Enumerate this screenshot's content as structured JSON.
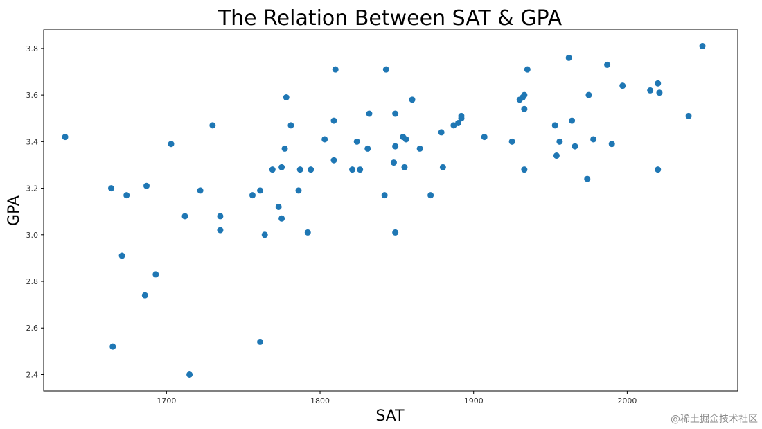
{
  "chart_data": {
    "type": "scatter",
    "title": "The Relation Between SAT & GPA",
    "xlabel": "SAT",
    "ylabel": "GPA",
    "xlim": [
      1620,
      2072
    ],
    "ylim": [
      2.33,
      3.88
    ],
    "xticks": [
      1700,
      1800,
      1900,
      2000
    ],
    "yticks": [
      2.4,
      2.6,
      2.8,
      3.0,
      3.2,
      3.4,
      3.6,
      3.8
    ],
    "xtick_labels": [
      "1700",
      "1800",
      "1900",
      "2000"
    ],
    "ytick_labels": [
      "2.4",
      "2.6",
      "2.8",
      "3.0",
      "3.2",
      "3.4",
      "3.6",
      "3.8"
    ],
    "grid": false,
    "marker_color": "#1f77b4",
    "points": [
      [
        1634,
        3.42
      ],
      [
        1664,
        3.2
      ],
      [
        1665,
        2.52
      ],
      [
        1671,
        2.91
      ],
      [
        1674,
        3.17
      ],
      [
        1686,
        2.74
      ],
      [
        1687,
        3.21
      ],
      [
        1693,
        2.83
      ],
      [
        1703,
        3.39
      ],
      [
        1712,
        3.08
      ],
      [
        1715,
        2.4
      ],
      [
        1722,
        3.19
      ],
      [
        1730,
        3.47
      ],
      [
        1735,
        3.08
      ],
      [
        1735,
        3.02
      ],
      [
        1756,
        3.17
      ],
      [
        1761,
        3.19
      ],
      [
        1761,
        2.54
      ],
      [
        1764,
        3.0
      ],
      [
        1769,
        3.28
      ],
      [
        1773,
        3.12
      ],
      [
        1775,
        3.29
      ],
      [
        1775,
        3.07
      ],
      [
        1777,
        3.37
      ],
      [
        1778,
        3.59
      ],
      [
        1781,
        3.47
      ],
      [
        1786,
        3.19
      ],
      [
        1787,
        3.28
      ],
      [
        1792,
        3.01
      ],
      [
        1794,
        3.28
      ],
      [
        1803,
        3.41
      ],
      [
        1809,
        3.32
      ],
      [
        1809,
        3.49
      ],
      [
        1810,
        3.71
      ],
      [
        1821,
        3.28
      ],
      [
        1824,
        3.4
      ],
      [
        1826,
        3.28
      ],
      [
        1831,
        3.37
      ],
      [
        1832,
        3.52
      ],
      [
        1842,
        3.17
      ],
      [
        1843,
        3.71
      ],
      [
        1848,
        3.31
      ],
      [
        1849,
        3.52
      ],
      [
        1849,
        3.38
      ],
      [
        1849,
        3.01
      ],
      [
        1854,
        3.42
      ],
      [
        1855,
        3.29
      ],
      [
        1856,
        3.41
      ],
      [
        1860,
        3.58
      ],
      [
        1865,
        3.37
      ],
      [
        1872,
        3.17
      ],
      [
        1879,
        3.44
      ],
      [
        1880,
        3.29
      ],
      [
        1887,
        3.47
      ],
      [
        1890,
        3.48
      ],
      [
        1892,
        3.5
      ],
      [
        1892,
        3.51
      ],
      [
        1907,
        3.42
      ],
      [
        1925,
        3.4
      ],
      [
        1930,
        3.58
      ],
      [
        1932,
        3.59
      ],
      [
        1933,
        3.6
      ],
      [
        1933,
        3.54
      ],
      [
        1933,
        3.28
      ],
      [
        1935,
        3.71
      ],
      [
        1953,
        3.47
      ],
      [
        1954,
        3.34
      ],
      [
        1956,
        3.4
      ],
      [
        1962,
        3.76
      ],
      [
        1964,
        3.49
      ],
      [
        1966,
        3.38
      ],
      [
        1974,
        3.24
      ],
      [
        1975,
        3.6
      ],
      [
        1978,
        3.41
      ],
      [
        1987,
        3.73
      ],
      [
        1990,
        3.39
      ],
      [
        1997,
        3.64
      ],
      [
        2015,
        3.62
      ],
      [
        2020,
        3.65
      ],
      [
        2020,
        3.28
      ],
      [
        2021,
        3.61
      ],
      [
        2040,
        3.51
      ],
      [
        2049,
        3.81
      ]
    ]
  },
  "watermark": "@稀土掘金技术社区"
}
